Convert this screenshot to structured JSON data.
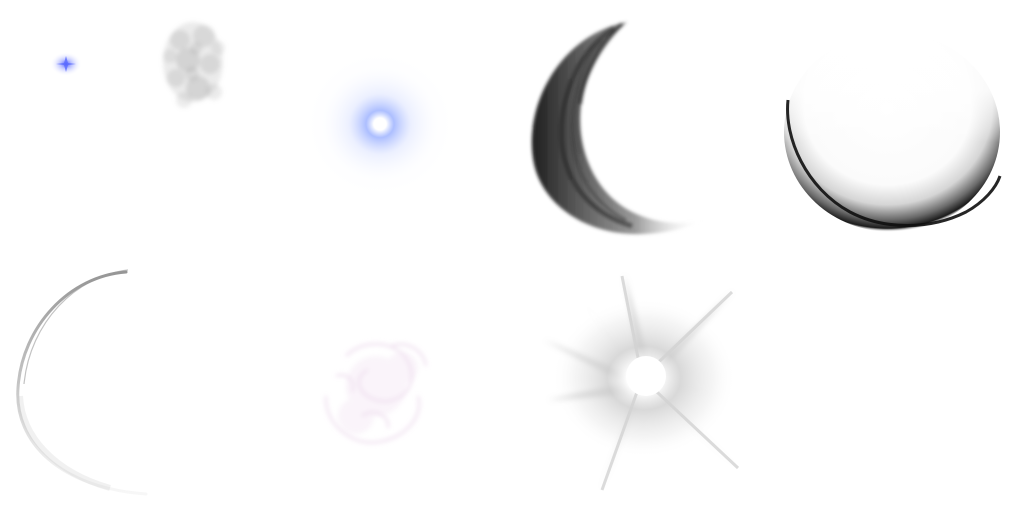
{
  "sprite_sheet": {
    "background": "#ffffff",
    "sprites": [
      {
        "name": "small-blue-sparkle",
        "color": "#5a6bff"
      },
      {
        "name": "gray-smoke-cloud",
        "color": "#9a9a9a"
      },
      {
        "name": "blue-glow-orb",
        "color": "#7f9bff"
      },
      {
        "name": "dark-crescent-slash",
        "color": "#111111"
      },
      {
        "name": "moon-crescent-shadow",
        "color": "#1a1a1a"
      },
      {
        "name": "thin-arc-swoosh",
        "color": "#b0b0b0"
      },
      {
        "name": "faint-pink-smoke",
        "color": "#e6cde6"
      },
      {
        "name": "gray-burst-explosion",
        "color": "#c8c8c8"
      }
    ]
  }
}
